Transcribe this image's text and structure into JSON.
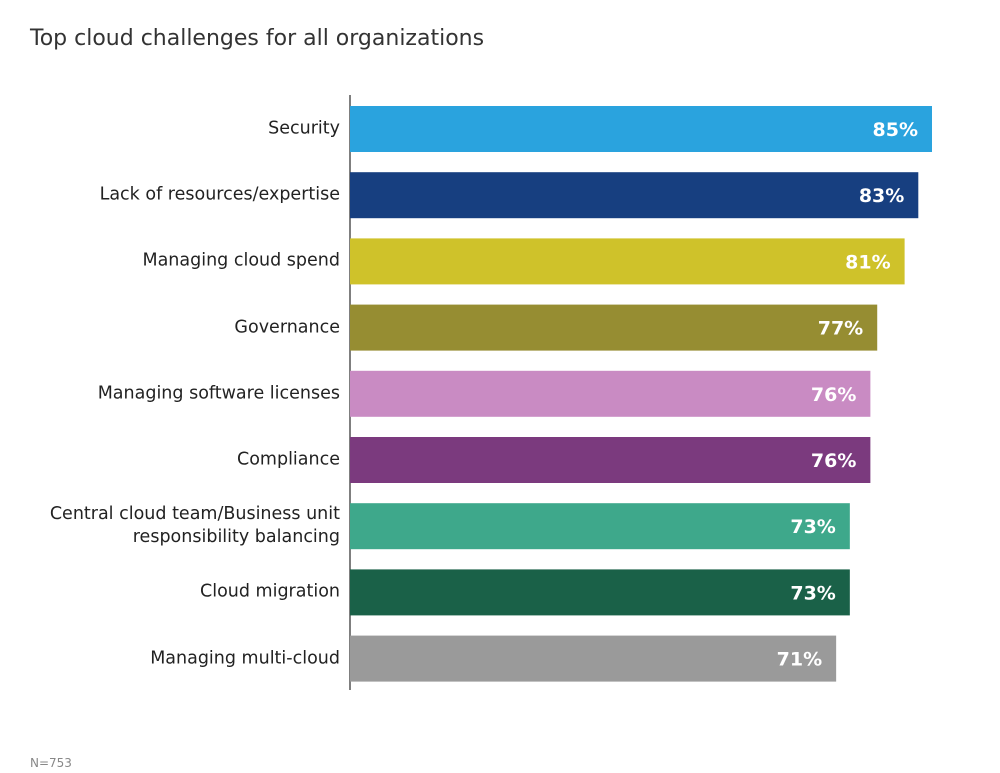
{
  "chart_data": {
    "type": "bar",
    "orientation": "horizontal",
    "title": "Top cloud challenges for all organizations",
    "categories": [
      "Security",
      "Lack of resources/expertise",
      "Managing cloud spend",
      "Governance",
      "Managing software licenses",
      "Compliance",
      "Central cloud team/Business unit responsibility balancing",
      "Cloud migration",
      "Managing multi-cloud"
    ],
    "values": [
      85,
      83,
      81,
      77,
      76,
      76,
      73,
      73,
      71
    ],
    "value_labels": [
      "85%",
      "83%",
      "81%",
      "77%",
      "76%",
      "76%",
      "73%",
      "73%",
      "71%"
    ],
    "colors": [
      "#2aa3de",
      "#173f80",
      "#cfc22a",
      "#968d32",
      "#c98bc3",
      "#7b3a7e",
      "#3ea88b",
      "#1a6148",
      "#9a9a9a"
    ],
    "footnote": "N=753"
  }
}
